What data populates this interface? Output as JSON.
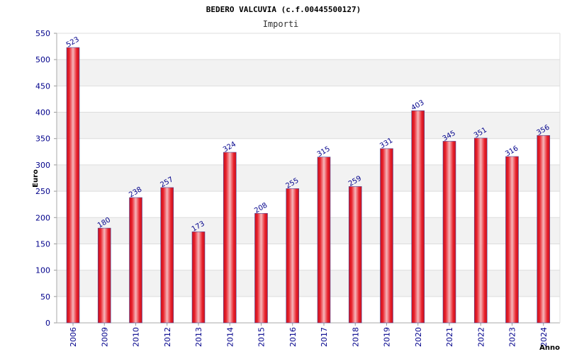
{
  "chart_data": {
    "type": "bar",
    "title": "BEDERO VALCUVIA (c.f.00445500127)",
    "subtitle": "Importi",
    "ylabel": "Euro",
    "xlabel": "Anno",
    "ylim": [
      0,
      550
    ],
    "yticks": [
      0,
      50,
      100,
      150,
      200,
      250,
      300,
      350,
      400,
      450,
      500,
      550
    ],
    "categories": [
      "2006",
      "2009",
      "2010",
      "2012",
      "2013",
      "2014",
      "2015",
      "2016",
      "2017",
      "2018",
      "2019",
      "2020",
      "2021",
      "2022",
      "2023",
      "2024"
    ],
    "values": [
      523,
      180,
      238,
      257,
      173,
      324,
      208,
      255,
      315,
      259,
      331,
      403,
      345,
      351,
      316,
      356
    ],
    "grid": true,
    "bar_color": "#e8202a",
    "bar_edge_color": "#5050a0",
    "label_color": "#00008b",
    "band_color": "#f2f2f2"
  }
}
